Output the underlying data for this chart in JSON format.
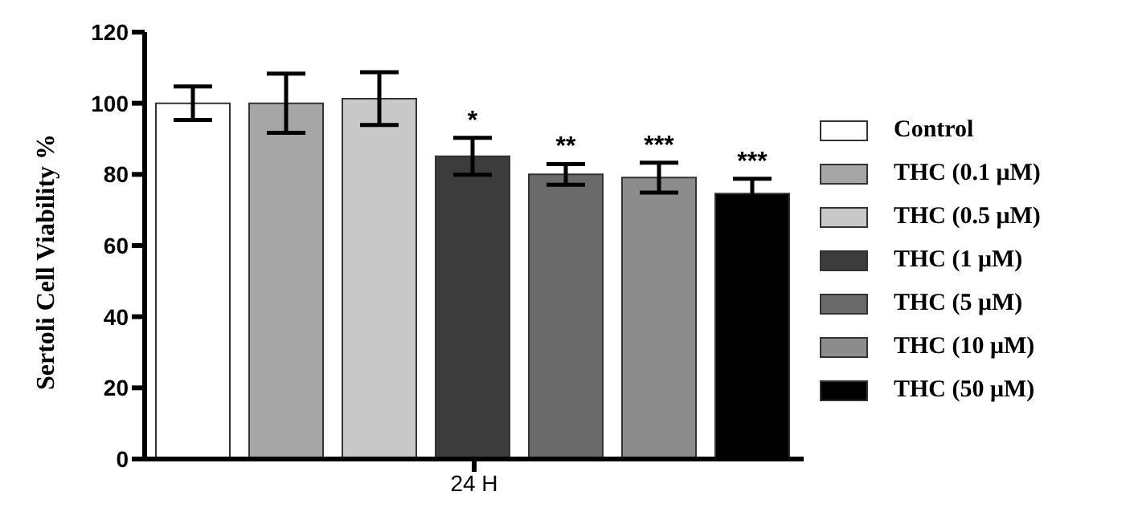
{
  "chart_data": {
    "type": "bar",
    "ylabel": "Sertoli Cell Viability %",
    "categories": [
      "24 H"
    ],
    "series": [
      {
        "name": "Control",
        "color": "#ffffff",
        "values": [
          100
        ],
        "errors": [
          4.7
        ]
      },
      {
        "name": "THC (0.1 μM)",
        "color": "#a6a6a6",
        "values": [
          100
        ],
        "errors": [
          8.3
        ]
      },
      {
        "name": "THC (0.5 μM)",
        "color": "#c8c8c8",
        "values": [
          101.3
        ],
        "errors": [
          7.4
        ]
      },
      {
        "name": "THC (1 μM)",
        "color": "#3c3c3c",
        "values": [
          85.1
        ],
        "errors": [
          5.2
        ]
      },
      {
        "name": "THC (5 μM)",
        "color": "#6a6a6a",
        "values": [
          80
        ],
        "errors": [
          2.9
        ]
      },
      {
        "name": "THC (10 μM)",
        "color": "#8c8c8c",
        "values": [
          79.1
        ],
        "errors": [
          4.2
        ]
      },
      {
        "name": "THC (50 μM)",
        "color": "#000000",
        "values": [
          74.6
        ],
        "errors": [
          4.2
        ]
      }
    ],
    "annotations": [
      "*",
      "**",
      "***",
      "***"
    ],
    "ylim": [
      0,
      120
    ],
    "yticks": [
      0,
      20,
      40,
      60,
      80,
      100,
      120
    ],
    "grid": false,
    "legend": "right"
  }
}
